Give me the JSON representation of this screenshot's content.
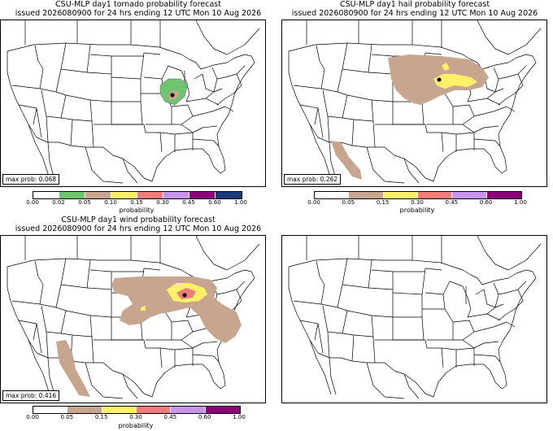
{
  "panels": [
    {
      "id": "tornado",
      "title_line1": "CSU-MLP day1 tornado probability forecast",
      "title_line2": "issued 2026080900 for 24 hrs ending 12 UTC Mon 10 Aug 2026",
      "max_prob_label": "max prob: 0.068",
      "colorbar": {
        "label": "probability",
        "ticks": [
          "0.00",
          "0.02",
          "0.05",
          "0.10",
          "0.15",
          "0.30",
          "0.45",
          "0.60",
          "1.00"
        ],
        "colors": [
          "#ffffff",
          "#6fc46f",
          "#c8a58f",
          "#fff06a",
          "#f07c7c",
          "#c695ec",
          "#8c0078",
          "#1b3a7a"
        ]
      }
    },
    {
      "id": "hail",
      "title_line1": "CSU-MLP day1 hail probability forecast",
      "title_line2": "issued 2026080900 for 24 hrs ending 12 UTC Mon 10 Aug 2026",
      "max_prob_label": "max prob: 0.262",
      "colorbar": {
        "label": "probability",
        "ticks": [
          "0.00",
          "0.05",
          "0.15",
          "0.30",
          "0.45",
          "0.60",
          "1.00"
        ],
        "colors": [
          "#ffffff",
          "#c8a58f",
          "#fff06a",
          "#f07c7c",
          "#c695ec",
          "#8c0078"
        ]
      }
    },
    {
      "id": "wind",
      "title_line1": "CSU-MLP day1 wind probability forecast",
      "title_line2": "issued 2026080900 for 24 hrs ending 12 UTC Mon 10 Aug 2026",
      "max_prob_label": "max prob: 0.416",
      "colorbar": {
        "label": "probability",
        "ticks": [
          "0.00",
          "0.05",
          "0.15",
          "0.30",
          "0.45",
          "0.60",
          "1.00"
        ],
        "colors": [
          "#ffffff",
          "#c8a58f",
          "#fff06a",
          "#f07c7c",
          "#c695ec",
          "#8c0078"
        ]
      }
    },
    {
      "id": "empty"
    }
  ]
}
